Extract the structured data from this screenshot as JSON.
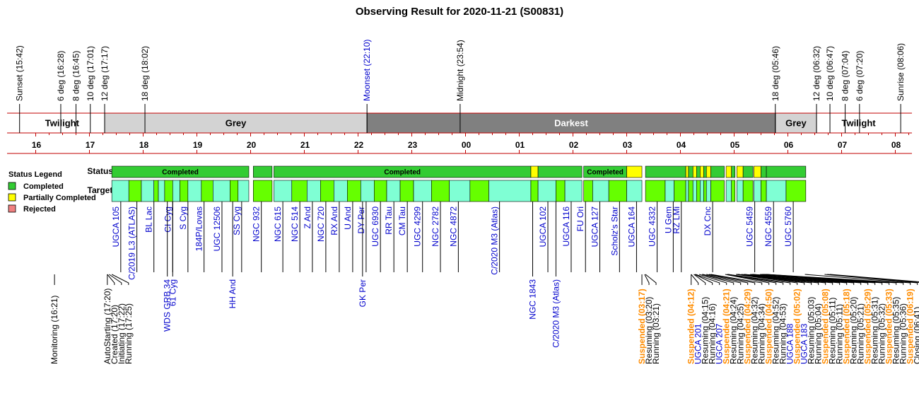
{
  "chart_data": {
    "type": "timeline",
    "title": "Observing Result for 2020-11-21 (S00831)",
    "colors": {
      "completed": "#33cc33",
      "partial": "#ffff00",
      "rejected": "#f08080",
      "target_a": "#66ff00",
      "target_b": "#7fffd4",
      "grey": "#d3d3d3",
      "darkest": "#808080",
      "axis": "#c00000",
      "blue_text": "#0000cc",
      "orange_text": "#ff8c00"
    },
    "hour_ticks": [
      "16",
      "17",
      "18",
      "19",
      "20",
      "21",
      "22",
      "23",
      "00",
      "01",
      "02",
      "03",
      "04",
      "05",
      "06",
      "07",
      "08"
    ],
    "twilight_events": [
      {
        "label": "Sunset (15:42)",
        "t": "15:42",
        "color": "black"
      },
      {
        "label": "6 deg (16:28)",
        "t": "16:28",
        "color": "black"
      },
      {
        "label": "8 deg (16:45)",
        "t": "16:45",
        "color": "black"
      },
      {
        "label": "10 deg (17:01)",
        "t": "17:01",
        "color": "black"
      },
      {
        "label": "12 deg (17:17)",
        "t": "17:17",
        "color": "black"
      },
      {
        "label": "18 deg (18:02)",
        "t": "18:02",
        "color": "black"
      },
      {
        "label": "Moonset (22:10)",
        "t": "22:10",
        "color": "blue"
      },
      {
        "label": "Midnight (23:54)",
        "t": "23:54",
        "color": "black"
      },
      {
        "label": "18 deg (05:46)",
        "t": "05:46",
        "color": "black"
      },
      {
        "label": "12 deg (06:32)",
        "t": "06:32",
        "color": "black"
      },
      {
        "label": "10 deg (06:47)",
        "t": "06:47",
        "color": "black"
      },
      {
        "label": "8 deg (07:04)",
        "t": "07:04",
        "color": "black"
      },
      {
        "label": "6 deg (07:20)",
        "t": "07:20",
        "color": "black"
      },
      {
        "label": "Sunrise (08:06)",
        "t": "08:06",
        "color": "black"
      }
    ],
    "bands": [
      {
        "label": "Twilight",
        "start": "15:42",
        "end": "17:17",
        "kind": "white"
      },
      {
        "label": "Grey",
        "start": "17:17",
        "end": "22:10",
        "kind": "grey"
      },
      {
        "label": "Darkest",
        "start": "22:10",
        "end": "05:46",
        "kind": "darkest"
      },
      {
        "label": "Grey",
        "start": "05:46",
        "end": "06:32",
        "kind": "grey"
      },
      {
        "label": "Twilight",
        "start": "06:32",
        "end": "08:06",
        "kind": "white"
      }
    ],
    "row_labels": {
      "status": "Status",
      "targets": "Targets"
    },
    "legend": {
      "title": "Status Legend",
      "items": [
        {
          "label": "Completed",
          "color": "#33cc33"
        },
        {
          "label": "Partially Completed",
          "color": "#ffff00"
        },
        {
          "label": "Rejected",
          "color": "#f08080"
        }
      ]
    },
    "status_segments": [
      {
        "start": "17:25",
        "end": "19:58",
        "status": "completed",
        "label": "Completed"
      },
      {
        "start": "20:03",
        "end": "20:24",
        "status": "completed",
        "label": ""
      },
      {
        "start": "20:26",
        "end": "01:13",
        "status": "completed",
        "label": "Completed"
      },
      {
        "start": "01:13",
        "end": "01:21",
        "status": "partial",
        "label": ""
      },
      {
        "start": "01:21",
        "end": "02:10",
        "status": "completed",
        "label": ""
      },
      {
        "start": "02:12",
        "end": "03:00",
        "status": "completed",
        "label": "Completed"
      },
      {
        "start": "03:00",
        "end": "03:17",
        "status": "partial",
        "label": ""
      },
      {
        "start": "03:21",
        "end": "04:06",
        "status": "completed",
        "label": ""
      },
      {
        "start": "04:06",
        "end": "04:09",
        "status": "partial",
        "label": ""
      },
      {
        "start": "04:09",
        "end": "04:14",
        "status": "completed",
        "label": ""
      },
      {
        "start": "04:14",
        "end": "04:18",
        "status": "partial",
        "label": ""
      },
      {
        "start": "04:18",
        "end": "04:22",
        "status": "completed",
        "label": ""
      },
      {
        "start": "04:22",
        "end": "04:26",
        "status": "partial",
        "label": ""
      },
      {
        "start": "04:26",
        "end": "04:29",
        "status": "completed",
        "label": ""
      },
      {
        "start": "04:29",
        "end": "04:34",
        "status": "partial",
        "label": ""
      },
      {
        "start": "04:34",
        "end": "04:49",
        "status": "completed",
        "label": ""
      },
      {
        "start": "04:51",
        "end": "04:57",
        "status": "partial",
        "label": ""
      },
      {
        "start": "04:57",
        "end": "05:01",
        "status": "completed",
        "label": ""
      },
      {
        "start": "05:03",
        "end": "05:10",
        "status": "partial",
        "label": ""
      },
      {
        "start": "05:10",
        "end": "05:21",
        "status": "completed",
        "label": ""
      },
      {
        "start": "05:22",
        "end": "05:30",
        "status": "partial",
        "label": ""
      },
      {
        "start": "05:30",
        "end": "05:36",
        "status": "completed",
        "label": ""
      },
      {
        "start": "05:36",
        "end": "06:20",
        "status": "completed",
        "label": ""
      }
    ],
    "target_segments": [
      {
        "start": "17:25",
        "end": "17:44",
        "fill": "b"
      },
      {
        "start": "17:44",
        "end": "17:58",
        "fill": "a"
      },
      {
        "start": "17:58",
        "end": "18:12",
        "fill": "b"
      },
      {
        "start": "18:12",
        "end": "18:17",
        "fill": "a"
      },
      {
        "start": "18:17",
        "end": "18:24",
        "fill": "b"
      },
      {
        "start": "18:24",
        "end": "18:33",
        "fill": "a"
      },
      {
        "start": "18:33",
        "end": "18:41",
        "fill": "b"
      },
      {
        "start": "18:41",
        "end": "18:50",
        "fill": "a"
      },
      {
        "start": "18:50",
        "end": "19:05",
        "fill": "b"
      },
      {
        "start": "19:05",
        "end": "19:18",
        "fill": "a"
      },
      {
        "start": "19:18",
        "end": "19:37",
        "fill": "b"
      },
      {
        "start": "19:37",
        "end": "19:46",
        "fill": "a"
      },
      {
        "start": "19:46",
        "end": "19:58",
        "fill": "b"
      },
      {
        "start": "20:03",
        "end": "20:24",
        "fill": "a"
      },
      {
        "start": "20:26",
        "end": "20:46",
        "fill": "b"
      },
      {
        "start": "20:46",
        "end": "21:03",
        "fill": "a"
      },
      {
        "start": "21:03",
        "end": "21:18",
        "fill": "b"
      },
      {
        "start": "21:18",
        "end": "21:33",
        "fill": "a"
      },
      {
        "start": "21:33",
        "end": "21:48",
        "fill": "b"
      },
      {
        "start": "21:48",
        "end": "22:03",
        "fill": "a"
      },
      {
        "start": "22:03",
        "end": "22:18",
        "fill": "b"
      },
      {
        "start": "22:18",
        "end": "22:32",
        "fill": "a"
      },
      {
        "start": "22:32",
        "end": "22:47",
        "fill": "b"
      },
      {
        "start": "22:47",
        "end": "23:02",
        "fill": "a"
      },
      {
        "start": "23:02",
        "end": "23:22",
        "fill": "b"
      },
      {
        "start": "23:22",
        "end": "23:42",
        "fill": "a"
      },
      {
        "start": "23:42",
        "end": "00:05",
        "fill": "b"
      },
      {
        "start": "00:05",
        "end": "00:26",
        "fill": "a"
      },
      {
        "start": "00:26",
        "end": "01:13",
        "fill": "b"
      },
      {
        "start": "01:13",
        "end": "01:21",
        "fill": "a"
      },
      {
        "start": "01:21",
        "end": "01:41",
        "fill": "b"
      },
      {
        "start": "01:41",
        "end": "01:51",
        "fill": "a"
      },
      {
        "start": "01:51",
        "end": "02:10",
        "fill": "b"
      },
      {
        "start": "02:12",
        "end": "02:22",
        "fill": "a"
      },
      {
        "start": "02:22",
        "end": "02:40",
        "fill": "b"
      },
      {
        "start": "02:40",
        "end": "03:00",
        "fill": "a"
      },
      {
        "start": "03:00",
        "end": "03:17",
        "fill": "b"
      },
      {
        "start": "03:21",
        "end": "03:43",
        "fill": "a"
      },
      {
        "start": "03:43",
        "end": "03:53",
        "fill": "b"
      },
      {
        "start": "03:53",
        "end": "04:06",
        "fill": "a"
      },
      {
        "start": "04:06",
        "end": "04:09",
        "fill": "b"
      },
      {
        "start": "04:09",
        "end": "04:14",
        "fill": "a"
      },
      {
        "start": "04:14",
        "end": "04:18",
        "fill": "b"
      },
      {
        "start": "04:18",
        "end": "04:22",
        "fill": "a"
      },
      {
        "start": "04:22",
        "end": "04:26",
        "fill": "b"
      },
      {
        "start": "04:26",
        "end": "04:29",
        "fill": "a"
      },
      {
        "start": "04:29",
        "end": "04:34",
        "fill": "b"
      },
      {
        "start": "04:34",
        "end": "04:49",
        "fill": "a"
      },
      {
        "start": "04:51",
        "end": "04:57",
        "fill": "b"
      },
      {
        "start": "04:57",
        "end": "05:01",
        "fill": "a"
      },
      {
        "start": "05:03",
        "end": "05:10",
        "fill": "b"
      },
      {
        "start": "05:10",
        "end": "05:21",
        "fill": "a"
      },
      {
        "start": "05:22",
        "end": "05:30",
        "fill": "b"
      },
      {
        "start": "05:30",
        "end": "05:36",
        "fill": "a"
      },
      {
        "start": "05:36",
        "end": "05:58",
        "fill": "b"
      },
      {
        "start": "05:58",
        "end": "06:20",
        "fill": "a"
      }
    ],
    "targets_upper": [
      {
        "name": "UGCA 105",
        "t": "17:35"
      },
      {
        "name": "C/2019 L3 (ATLAS)",
        "t": "17:53"
      },
      {
        "name": "BL Lac",
        "t": "18:12"
      },
      {
        "name": "CI Cyg",
        "t": "18:33"
      },
      {
        "name": "S Cyg",
        "t": "18:50"
      },
      {
        "name": "184P/Lovas",
        "t": "19:08"
      },
      {
        "name": "UGC 12506",
        "t": "19:28"
      },
      {
        "name": "SS Cyg",
        "t": "19:50"
      },
      {
        "name": "NGC 932",
        "t": "20:12"
      },
      {
        "name": "NGC 615",
        "t": "20:36"
      },
      {
        "name": "NGC 514",
        "t": "20:55"
      },
      {
        "name": "Z And",
        "t": "21:09"
      },
      {
        "name": "NGC 720",
        "t": "21:24"
      },
      {
        "name": "RX And",
        "t": "21:39"
      },
      {
        "name": "U And",
        "t": "21:54"
      },
      {
        "name": "DY Per",
        "t": "22:09"
      },
      {
        "name": "UGC 6930",
        "t": "22:25"
      },
      {
        "name": "RR Tau",
        "t": "22:40"
      },
      {
        "name": "CM Tau",
        "t": "22:55"
      },
      {
        "name": "UGC 4299",
        "t": "23:12"
      },
      {
        "name": "NGC 2782",
        "t": "23:32"
      },
      {
        "name": "NGC 4872",
        "t": "23:52"
      },
      {
        "name": "C/2020 M3 (Atlas)",
        "t": "00:38"
      },
      {
        "name": "UGCA 102",
        "t": "01:32"
      },
      {
        "name": "UGCA 116",
        "t": "01:58"
      },
      {
        "name": "FU Ori",
        "t": "02:14"
      },
      {
        "name": "UGCA 127",
        "t": "02:30"
      },
      {
        "name": "Scholz's Star",
        "t": "02:52"
      },
      {
        "name": "UGCA 164",
        "t": "03:11"
      },
      {
        "name": "UGC 4332",
        "t": "03:34"
      },
      {
        "name": "U Gem",
        "t": "03:52"
      },
      {
        "name": "RZ LMi",
        "t": "04:01"
      },
      {
        "name": "DX Cnc",
        "t": "04:36"
      },
      {
        "name": "UGC 5459",
        "t": "05:23"
      },
      {
        "name": "NGC 4559",
        "t": "05:44"
      },
      {
        "name": "UGC 5760",
        "t": "06:06"
      }
    ],
    "targets_lower": [
      {
        "name": "WDS GRB 34",
        "t": "18:27"
      },
      {
        "name": "61 Cyg",
        "t": "18:33"
      },
      {
        "name": "HH And",
        "t": "19:40"
      },
      {
        "name": "GK Per",
        "t": "22:05"
      },
      {
        "name": "NGC 1843",
        "t": "01:15"
      },
      {
        "name": "C/2020 M3 (Atlas)",
        "t": "01:41"
      }
    ],
    "events": [
      {
        "label": "Monitoring (16:21)",
        "t": "16:21",
        "color": "black"
      },
      {
        "label": "AutoStarting (17:20)",
        "t": "17:20",
        "color": "black"
      },
      {
        "label": "Created (17:20)",
        "t": "17:20",
        "color": "black"
      },
      {
        "label": "Initiating (17:22)",
        "t": "17:22",
        "color": "black"
      },
      {
        "label": "Running (17:25)",
        "t": "17:25",
        "color": "black"
      },
      {
        "label": "Suspended (03:17)",
        "t": "03:17",
        "color": "orange"
      },
      {
        "label": "Resuming (03:20)",
        "t": "03:20",
        "color": "black"
      },
      {
        "label": "Running (03:21)",
        "t": "03:21",
        "color": "black"
      },
      {
        "label": "Suspended (04:12)",
        "t": "04:12",
        "color": "orange"
      },
      {
        "label": "UGCA 201",
        "t": "04:12",
        "color": "blue"
      },
      {
        "label": "Resuming (04:15)",
        "t": "04:15",
        "color": "black"
      },
      {
        "label": "Running (04:16)",
        "t": "04:16",
        "color": "black"
      },
      {
        "label": "UGCA 207",
        "t": "04:17",
        "color": "blue"
      },
      {
        "label": "Suspended (04:21)",
        "t": "04:21",
        "color": "orange"
      },
      {
        "label": "Resuming (04:24)",
        "t": "04:24",
        "color": "black"
      },
      {
        "label": "Running (04:25)",
        "t": "04:25",
        "color": "black"
      },
      {
        "label": "Suspended (04:29)",
        "t": "04:29",
        "color": "orange"
      },
      {
        "label": "Resuming (04:32)",
        "t": "04:32",
        "color": "black"
      },
      {
        "label": "Running (04:34)",
        "t": "04:34",
        "color": "black"
      },
      {
        "label": "Suspended (04:50)",
        "t": "04:50",
        "color": "orange"
      },
      {
        "label": "Resuming (04:52)",
        "t": "04:52",
        "color": "black"
      },
      {
        "label": "Running (04:53)",
        "t": "04:53",
        "color": "black"
      },
      {
        "label": "UGCA 188",
        "t": "04:53",
        "color": "blue"
      },
      {
        "label": "Suspended (05:02)",
        "t": "05:02",
        "color": "orange"
      },
      {
        "label": "UGCA 183",
        "t": "05:04",
        "color": "blue"
      },
      {
        "label": "Resuming (05:03)",
        "t": "05:03",
        "color": "black"
      },
      {
        "label": "Running (05:04)",
        "t": "05:04",
        "color": "black"
      },
      {
        "label": "Suspended (05:08)",
        "t": "05:08",
        "color": "orange"
      },
      {
        "label": "Resuming (05:11)",
        "t": "05:11",
        "color": "black"
      },
      {
        "label": "Running (05:11)",
        "t": "05:11",
        "color": "black"
      },
      {
        "label": "Suspended (05:18)",
        "t": "05:18",
        "color": "orange"
      },
      {
        "label": "Resuming (05:20)",
        "t": "05:20",
        "color": "black"
      },
      {
        "label": "Running (05:21)",
        "t": "05:21",
        "color": "black"
      },
      {
        "label": "Suspended (05:29)",
        "t": "05:29",
        "color": "orange"
      },
      {
        "label": "Resuming (05:31)",
        "t": "05:31",
        "color": "black"
      },
      {
        "label": "Running (05:32)",
        "t": "05:32",
        "color": "black"
      },
      {
        "label": "Suspended (05:33)",
        "t": "05:33",
        "color": "orange"
      },
      {
        "label": "Resuming (05:35)",
        "t": "05:35",
        "color": "black"
      },
      {
        "label": "Running (05:36)",
        "t": "05:36",
        "color": "black"
      },
      {
        "label": "Suspended (06:19)",
        "t": "06:19",
        "color": "orange"
      },
      {
        "label": "Closing (06:41)",
        "t": "06:41",
        "color": "black"
      },
      {
        "label": "Finished (06:44)",
        "t": "06:44",
        "color": "black"
      },
      {
        "label": "Scheduled End (06:47)",
        "t": "06:47",
        "color": "black"
      }
    ]
  }
}
